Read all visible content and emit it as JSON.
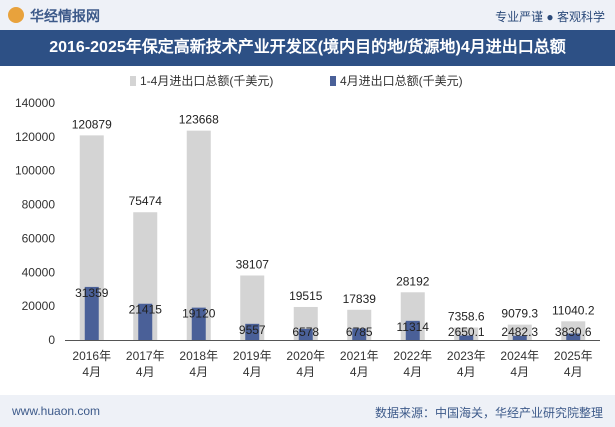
{
  "header": {
    "brand": "华经情报网",
    "tagline": "专业严谨 ● 客观科学"
  },
  "footer": {
    "site": "www.huaon.com",
    "source": "数据来源：中国海关，华经产业研究院整理"
  },
  "colors": {
    "title_bg": "#2d5085",
    "series1": "#d4d4d4",
    "series2": "#4a6098",
    "logo": "#e8a23c"
  },
  "chart_data": {
    "type": "bar",
    "title": "2016-2025年保定高新技术产业开发区(境内目的地/货源地)4月进出口总额",
    "categories": [
      [
        "2016年",
        "4月"
      ],
      [
        "2017年",
        "4月"
      ],
      [
        "2018年",
        "4月"
      ],
      [
        "2019年",
        "4月"
      ],
      [
        "2020年",
        "4月"
      ],
      [
        "2021年",
        "4月"
      ],
      [
        "2022年",
        "4月"
      ],
      [
        "2023年",
        "4月"
      ],
      [
        "2024年",
        "4月"
      ],
      [
        "2025年",
        "4月"
      ]
    ],
    "series": [
      {
        "name": "1-4月进出口总额(千美元)",
        "values": [
          120879,
          75474,
          123668,
          38107,
          19515,
          17839,
          28192,
          7358.6,
          9079.3,
          11040.2
        ],
        "labels": [
          "120879",
          "75474",
          "123668",
          "38107",
          "19515",
          "17839",
          "28192",
          "7358.6",
          "9079.3",
          "11040.2"
        ]
      },
      {
        "name": "4月进出口总额(千美元)",
        "values": [
          31359,
          21415,
          19120,
          9557,
          6578,
          6785,
          11314,
          2650.1,
          2482.3,
          3830.6
        ],
        "labels": [
          "31359",
          "21415",
          "19120",
          "9557",
          "6578",
          "6785",
          "11314",
          "2650.1",
          "2482.3",
          "3830.6"
        ]
      }
    ],
    "yticks": [
      "0",
      "20000",
      "40000",
      "60000",
      "80000",
      "100000",
      "120000",
      "140000"
    ],
    "ylim": [
      0,
      140000
    ],
    "legend": "top",
    "grid": false
  }
}
